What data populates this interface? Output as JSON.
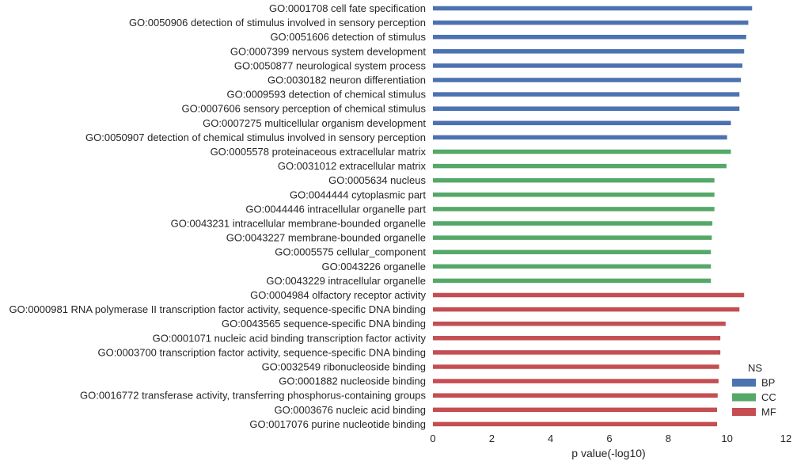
{
  "chart_data": {
    "type": "bar",
    "orientation": "horizontal",
    "title": "",
    "xlabel": "p value(-log10)",
    "ylabel": "",
    "xlim": [
      0,
      12
    ],
    "xticks": [
      "0",
      "2",
      "4",
      "6",
      "8",
      "10",
      "12"
    ],
    "grid": false,
    "legend": {
      "title": "NS",
      "placement": "bottom-right",
      "entries": [
        "BP",
        "CC",
        "MF"
      ]
    },
    "colors": {
      "BP": "#4c72b0",
      "CC": "#55a868",
      "MF": "#c44e52"
    },
    "categories": [
      "GO:0001708 cell fate specification",
      "GO:0050906 detection of stimulus involved in sensory perception",
      "GO:0051606 detection of stimulus",
      "GO:0007399 nervous system development",
      "GO:0050877 neurological system process",
      "GO:0030182 neuron differentiation",
      "GO:0009593 detection of chemical stimulus",
      "GO:0007606 sensory perception of chemical stimulus",
      "GO:0007275 multicellular organism development",
      "GO:0050907 detection of chemical stimulus involved in sensory perception",
      "GO:0005578 proteinaceous extracellular matrix",
      "GO:0031012 extracellular matrix",
      "GO:0005634 nucleus",
      "GO:0044444 cytoplasmic part",
      "GO:0044446 intracellular organelle part",
      "GO:0043231 intracellular membrane-bounded organelle",
      "GO:0043227 membrane-bounded organelle",
      "GO:0005575 cellular_component",
      "GO:0043226 organelle",
      "GO:0043229 intracellular organelle",
      "GO:0004984 olfactory receptor activity",
      "GO:0000981 RNA polymerase II transcription factor activity, sequence-specific DNA binding",
      "GO:0043565 sequence-specific DNA binding",
      "GO:0001071 nucleic acid binding transcription factor activity",
      "GO:0003700 transcription factor activity, sequence-specific DNA binding",
      "GO:0032549 ribonucleoside binding",
      "GO:0001882 nucleoside binding",
      "GO:0016772 transferase activity, transferring phosphorus-containing groups",
      "GO:0003676 nucleic acid binding",
      "GO:0017076 purine nucleotide binding"
    ],
    "groups": [
      "BP",
      "BP",
      "BP",
      "BP",
      "BP",
      "BP",
      "BP",
      "BP",
      "BP",
      "BP",
      "CC",
      "CC",
      "CC",
      "CC",
      "CC",
      "CC",
      "CC",
      "CC",
      "CC",
      "CC",
      "MF",
      "MF",
      "MF",
      "MF",
      "MF",
      "MF",
      "MF",
      "MF",
      "MF",
      "MF"
    ],
    "values": [
      10.85,
      10.72,
      10.65,
      10.58,
      10.52,
      10.47,
      10.42,
      10.42,
      10.13,
      10.0,
      10.13,
      9.98,
      9.57,
      9.57,
      9.57,
      9.5,
      9.48,
      9.45,
      9.45,
      9.45,
      10.58,
      10.42,
      9.95,
      9.77,
      9.77,
      9.73,
      9.71,
      9.68,
      9.66,
      9.66
    ]
  }
}
